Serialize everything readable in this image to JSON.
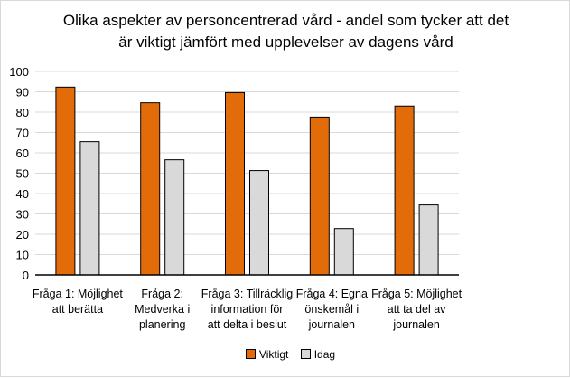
{
  "chart_data": {
    "type": "bar",
    "title_lines": [
      "Olika aspekter av personcentrerad vård - andel som tycker att det",
      "är viktigt jämfört med upplevelser av dagens vård"
    ],
    "categories": [
      [
        "Fråga 1: Möjlighet",
        "att berätta"
      ],
      [
        "Fråga 2:",
        "Medverka i",
        "planering"
      ],
      [
        "Fråga 3: Tillräcklig",
        "information för",
        "att delta i beslut"
      ],
      [
        "Fråga 4: Egna",
        "önskemål i",
        "journalen"
      ],
      [
        "Fråga 5: Möjlighet",
        "att ta del av",
        "journalen"
      ]
    ],
    "series": [
      {
        "name": "Viktigt",
        "color": "#E36C0A",
        "values": [
          92.3,
          84.6,
          89.6,
          77.6,
          83.0
        ]
      },
      {
        "name": "Idag",
        "color": "#D9D9D9",
        "values": [
          65.5,
          56.6,
          51.3,
          22.8,
          34.4
        ]
      }
    ],
    "ylim": [
      0,
      100
    ],
    "yticks": [
      0,
      10,
      20,
      30,
      40,
      50,
      60,
      70,
      80,
      90,
      100
    ],
    "grid": true,
    "legend": "bottom"
  }
}
